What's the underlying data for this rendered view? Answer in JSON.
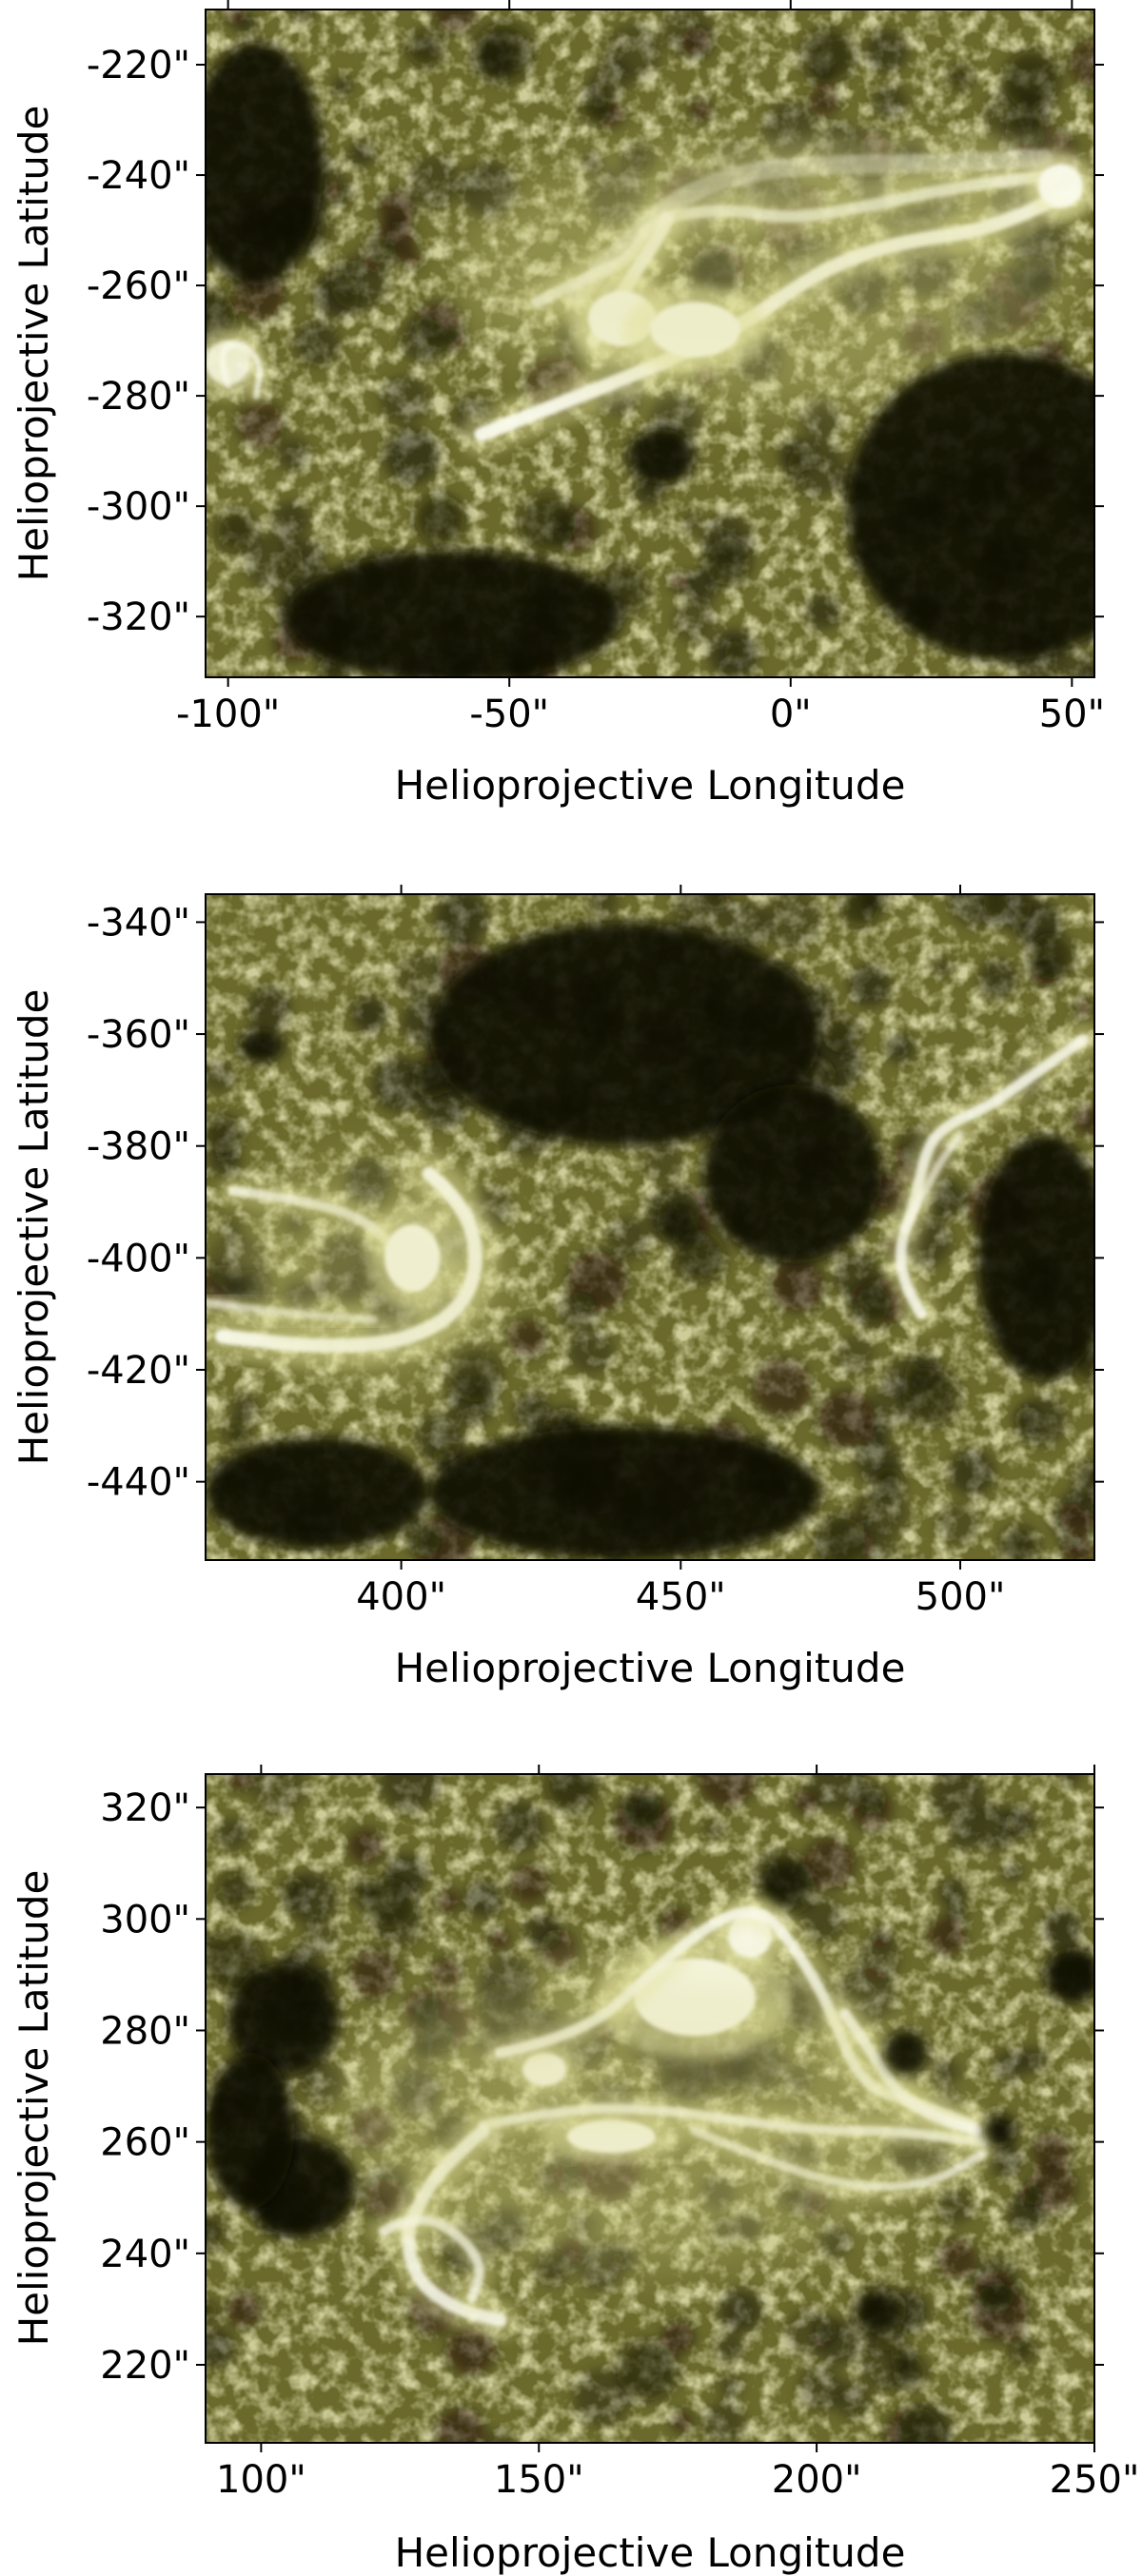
{
  "figure": {
    "palette": {
      "dark": "#0e0c02",
      "mid": "#6b6a2c",
      "bright": "#fbfbee",
      "frame": "#000000"
    },
    "panels": [
      {
        "id": "panel-1",
        "xlabel": "Helioprojective Longitude",
        "ylabel": "Helioprojective Latitude",
        "xlim": [
          -104,
          54
        ],
        "ylim": [
          -331,
          -210
        ],
        "xticks": [
          -100,
          -50,
          0,
          50
        ],
        "xtick_labels": [
          "-100\"",
          "-50\"",
          "0\"",
          "50\""
        ],
        "yticks": [
          -220,
          -240,
          -260,
          -280,
          -300,
          -320
        ],
        "ytick_labels": [
          "-220\"",
          "-240\"",
          "-260\"",
          "-280\"",
          "-300\"",
          "-320\""
        ],
        "features": [
          {
            "type": "loop",
            "points": [
              [
                -55,
                -287
              ],
              [
                -40,
                -281
              ],
              [
                -25,
                -275
              ],
              [
                -10,
                -268
              ],
              [
                0,
                -261
              ],
              [
                8,
                -256
              ],
              [
                20,
                -252
              ],
              [
                35,
                -250
              ],
              [
                50,
                -243
              ]
            ],
            "width": 2.6,
            "alpha": 0.95
          },
          {
            "type": "loop",
            "points": [
              [
                -45,
                -263
              ],
              [
                -35,
                -258
              ],
              [
                -28,
                -255
              ],
              [
                -25,
                -248
              ],
              [
                -12,
                -246
              ],
              [
                0,
                -248
              ],
              [
                12,
                -246
              ],
              [
                30,
                -242
              ],
              [
                47,
                -240
              ]
            ],
            "width": 2.2,
            "alpha": 0.75
          },
          {
            "type": "loop",
            "points": [
              [
                -35,
                -270
              ],
              [
                -28,
                -258
              ],
              [
                -24,
                -252
              ],
              [
                -22,
                -248
              ]
            ],
            "width": 2.5,
            "alpha": 0.9
          },
          {
            "type": "loop",
            "points": [
              [
                -38,
                -262
              ],
              [
                -26,
                -248
              ],
              [
                -12,
                -240
              ],
              [
                5,
                -238
              ],
              [
                25,
                -238
              ],
              [
                45,
                -237
              ]
            ],
            "width": 3.5,
            "alpha": 0.4
          },
          {
            "type": "blob",
            "at": [
              -30,
              -266
            ],
            "r": [
              6,
              5
            ],
            "alpha": 1.0
          },
          {
            "type": "blob",
            "at": [
              -17,
              -268
            ],
            "r": [
              8,
              5
            ],
            "alpha": 1.0
          },
          {
            "type": "blob",
            "at": [
              48,
              -242
            ],
            "r": [
              4,
              4
            ],
            "alpha": 0.95
          },
          {
            "type": "blob",
            "at": [
              -100,
              -274
            ],
            "r": [
              4,
              4
            ],
            "alpha": 0.85
          },
          {
            "type": "loop",
            "points": [
              [
                -100,
                -278
              ],
              [
                -102,
                -272
              ],
              [
                -98,
                -270
              ],
              [
                -94,
                -274
              ],
              [
                -95,
                -280
              ]
            ],
            "width": 1.2,
            "alpha": 0.75
          },
          {
            "type": "glow",
            "at": [
              -5,
              -258
            ],
            "r": [
              55,
              24
            ],
            "alpha": 0.35
          },
          {
            "type": "dark",
            "at": [
              -23,
              -291
            ],
            "r": [
              6,
              5
            ]
          },
          {
            "type": "dark",
            "at": [
              38,
              -300
            ],
            "r": [
              28,
              28
            ]
          },
          {
            "type": "dark",
            "at": [
              -95,
              -238
            ],
            "r": [
              12,
              22
            ]
          },
          {
            "type": "dark",
            "at": [
              -60,
              -320
            ],
            "r": [
              30,
              12
            ]
          }
        ]
      },
      {
        "id": "panel-2",
        "xlabel": "Helioprojective Longitude",
        "ylabel": "Helioprojective Latitude",
        "xlim": [
          365,
          524
        ],
        "ylim": [
          -454,
          -335
        ],
        "xticks": [
          400,
          450,
          500
        ],
        "xtick_labels": [
          "400\"",
          "450\"",
          "500\""
        ],
        "yticks": [
          -340,
          -360,
          -380,
          -400,
          -420,
          -440
        ],
        "ytick_labels": [
          "-340\"",
          "-360\"",
          "-380\"",
          "-400\"",
          "-420\"",
          "-440\""
        ],
        "features": [
          {
            "type": "loop",
            "points": [
              [
                405,
                -385
              ],
              [
                411,
                -390
              ],
              [
                414,
                -400
              ],
              [
                411,
                -409
              ],
              [
                401,
                -415
              ],
              [
                385,
                -416
              ],
              [
                368,
                -414
              ]
            ],
            "width": 2.6,
            "alpha": 0.95
          },
          {
            "type": "loop",
            "points": [
              [
                370,
                -388
              ],
              [
                385,
                -390
              ],
              [
                395,
                -394
              ],
              [
                400,
                -400
              ],
              [
                403,
                -405
              ]
            ],
            "width": 1.8,
            "alpha": 0.75
          },
          {
            "type": "loop",
            "points": [
              [
                365,
                -408
              ],
              [
                380,
                -410
              ],
              [
                395,
                -411
              ]
            ],
            "width": 1.5,
            "alpha": 0.6
          },
          {
            "type": "blob",
            "at": [
              402,
              -400
            ],
            "r": [
              5,
              6
            ],
            "alpha": 1.0
          },
          {
            "type": "glow",
            "at": [
              395,
              -402
            ],
            "r": [
              25,
              20
            ],
            "alpha": 0.3
          },
          {
            "type": "loop",
            "points": [
              [
                493,
                -410
              ],
              [
                490,
                -405
              ],
              [
                489,
                -398
              ],
              [
                492,
                -390
              ],
              [
                494,
                -380
              ],
              [
                498,
                -376
              ],
              [
                505,
                -373
              ],
              [
                512,
                -368
              ],
              [
                522,
                -361
              ]
            ],
            "width": 2.0,
            "alpha": 0.85
          },
          {
            "type": "loop",
            "points": [
              [
                490,
                -395
              ],
              [
                495,
                -385
              ],
              [
                500,
                -378
              ]
            ],
            "width": 1.4,
            "alpha": 0.6
          },
          {
            "type": "dark",
            "at": [
              375,
              -362
            ],
            "r": [
              4,
              3
            ]
          },
          {
            "type": "dark",
            "at": [
              440,
              -360
            ],
            "r": [
              35,
              20
            ]
          },
          {
            "type": "dark",
            "at": [
              470,
              -385
            ],
            "r": [
              16,
              16
            ]
          },
          {
            "type": "dark",
            "at": [
              515,
              -400
            ],
            "r": [
              12,
              22
            ]
          },
          {
            "type": "dark",
            "at": [
              440,
              -442
            ],
            "r": [
              35,
              12
            ]
          },
          {
            "type": "dark",
            "at": [
              385,
              -442
            ],
            "r": [
              20,
              10
            ]
          }
        ]
      },
      {
        "id": "panel-3",
        "xlabel": "Helioprojective Longitude",
        "ylabel": "Helioprojective Latitude",
        "xlim": [
          90,
          250
        ],
        "ylim": [
          206,
          326
        ],
        "xticks": [
          100,
          150,
          200,
          250
        ],
        "xtick_labels": [
          "100\"",
          "150\"",
          "200\"",
          "250\""
        ],
        "yticks": [
          320,
          300,
          280,
          260,
          240,
          220
        ],
        "ytick_labels": [
          "320\"",
          "300\"",
          "280\"",
          "260\"",
          "240\"",
          "220\""
        ],
        "features": [
          {
            "type": "blob",
            "at": [
              178,
              286
            ],
            "r": [
              11,
              7
            ],
            "alpha": 1.0
          },
          {
            "type": "blob",
            "at": [
              188,
              297
            ],
            "r": [
              4,
              4
            ],
            "alpha": 0.95
          },
          {
            "type": "blob",
            "at": [
              163,
              261
            ],
            "r": [
              8,
              3
            ],
            "alpha": 1.0
          },
          {
            "type": "blob",
            "at": [
              151,
              273
            ],
            "r": [
              4,
              3
            ],
            "alpha": 0.95
          },
          {
            "type": "loop",
            "points": [
              [
                143,
                276
              ],
              [
                158,
                279
              ],
              [
                172,
                292
              ],
              [
                182,
                300
              ],
              [
                190,
                302
              ],
              [
                196,
                295
              ],
              [
                202,
                285
              ],
              [
                208,
                270
              ],
              [
                218,
                267
              ],
              [
                228,
                263
              ]
            ],
            "width": 2.0,
            "alpha": 0.85
          },
          {
            "type": "loop",
            "points": [
              [
                140,
                263
              ],
              [
                155,
                266
              ],
              [
                170,
                266
              ],
              [
                185,
                264
              ],
              [
                200,
                262
              ],
              [
                215,
                262
              ],
              [
                230,
                260
              ]
            ],
            "width": 1.8,
            "alpha": 0.8
          },
          {
            "type": "loop",
            "points": [
              [
                178,
                262
              ],
              [
                190,
                257
              ],
              [
                205,
                252
              ],
              [
                220,
                252
              ],
              [
                230,
                258
              ]
            ],
            "width": 1.6,
            "alpha": 0.7
          },
          {
            "type": "loop",
            "points": [
              [
                140,
                262
              ],
              [
                132,
                255
              ],
              [
                128,
                248
              ],
              [
                126,
                243
              ],
              [
                128,
                235
              ],
              [
                135,
                230
              ],
              [
                143,
                228
              ]
            ],
            "width": 2.4,
            "alpha": 0.85
          },
          {
            "type": "loop",
            "points": [
              [
                122,
                244
              ],
              [
                128,
                247
              ],
              [
                135,
                244
              ],
              [
                140,
                238
              ],
              [
                138,
                232
              ]
            ],
            "width": 1.8,
            "alpha": 0.75
          },
          {
            "type": "loop",
            "points": [
              [
                205,
                283
              ],
              [
                210,
                276
              ],
              [
                215,
                268
              ],
              [
                222,
                264
              ],
              [
                229,
                262
              ]
            ],
            "width": 2.0,
            "alpha": 0.85
          },
          {
            "type": "glow",
            "at": [
              168,
              265
            ],
            "r": [
              55,
              28
            ],
            "alpha": 0.35
          },
          {
            "type": "dark",
            "at": [
              104,
              282
            ],
            "r": [
              10,
              10
            ]
          },
          {
            "type": "dark",
            "at": [
              107,
              252
            ],
            "r": [
              10,
              9
            ]
          },
          {
            "type": "dark",
            "at": [
              98,
              262
            ],
            "r": [
              8,
              14
            ]
          },
          {
            "type": "dark",
            "at": [
              233,
              262
            ],
            "r": [
              3,
              3
            ]
          },
          {
            "type": "dark",
            "at": [
              246,
              290
            ],
            "r": [
              5,
              5
            ]
          },
          {
            "type": "dark",
            "at": [
              216,
              276
            ],
            "r": [
              4,
              4
            ]
          }
        ]
      }
    ]
  }
}
